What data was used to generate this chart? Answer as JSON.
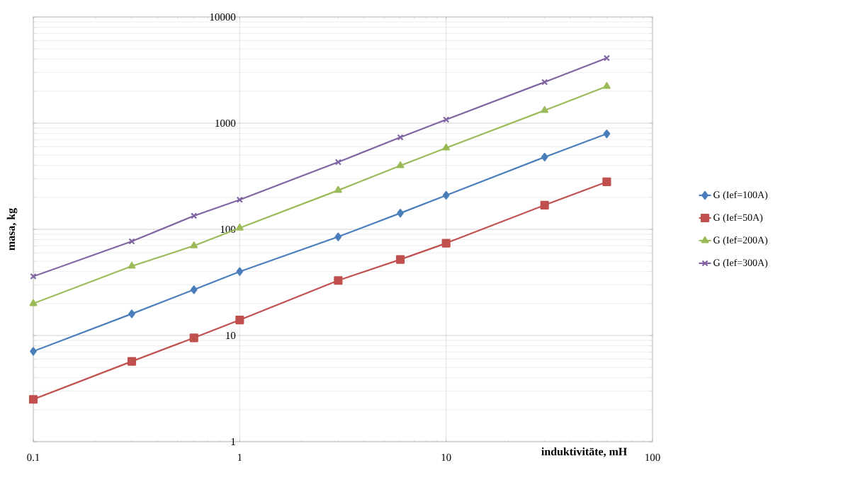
{
  "chart_data": {
    "type": "line",
    "xlabel": "induktivitāte, mH",
    "ylabel": "masa, kg",
    "x": [
      0.1,
      0.3,
      0.6,
      1,
      3,
      6,
      10,
      30,
      60
    ],
    "series": [
      {
        "name": "G (Ief=100A)",
        "color": "#4a7ebb",
        "marker": "diamond",
        "values": [
          7.1,
          16,
          27,
          40,
          85,
          142,
          209,
          479,
          794
        ]
      },
      {
        "name": "G (Ief=50A)",
        "color": "#c0504d",
        "marker": "square",
        "values": [
          2.5,
          5.7,
          9.5,
          14,
          33,
          52,
          74,
          169,
          280
        ]
      },
      {
        "name": "G (Ief=200A)",
        "color": "#9bbb59",
        "marker": "triangle",
        "values": [
          20,
          45,
          70,
          103,
          233,
          398,
          585,
          1318,
          2221
        ]
      },
      {
        "name": "G (Ief=300A)",
        "color": "#8064a2",
        "marker": "cross",
        "values": [
          36,
          77,
          134,
          190,
          430,
          735,
          1080,
          2435,
          4100
        ]
      }
    ],
    "log": "xy",
    "xlim": [
      0.1,
      100
    ],
    "ylim": [
      1,
      10000
    ],
    "xticks": [
      0.1,
      1,
      10,
      100
    ],
    "yticks": [
      1,
      10,
      100,
      1000,
      10000
    ],
    "grid": true,
    "legend": "right",
    "line_style": "solid"
  }
}
